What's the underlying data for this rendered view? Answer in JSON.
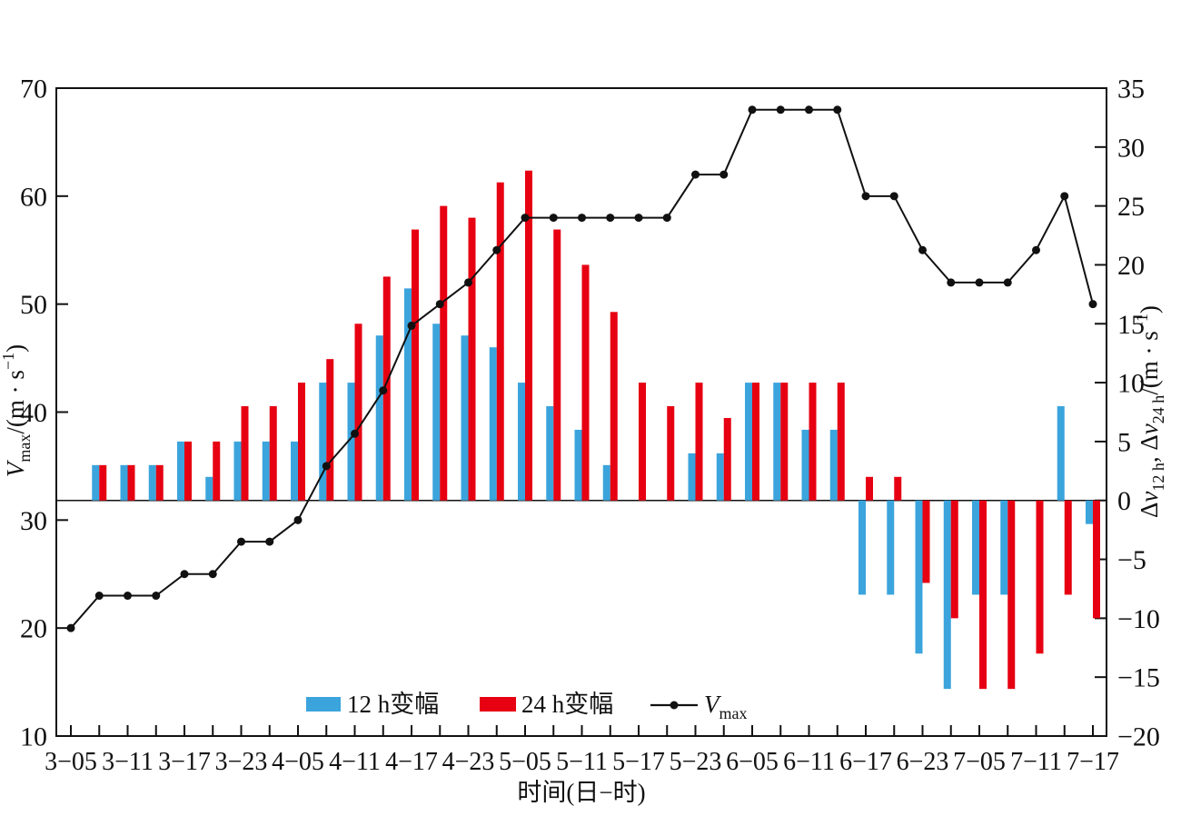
{
  "chart_data": {
    "type": "combo",
    "title": "",
    "xlabel": "时间(日−时)",
    "x_tick_labels": [
      "3−05",
      "3−11",
      "3−17",
      "3−23",
      "4−05",
      "4−11",
      "4−17",
      "4−23",
      "5−05",
      "5−11",
      "5−17",
      "5−23",
      "6−05",
      "6−11",
      "6−17",
      "6−23",
      "7−05",
      "7−11",
      "7−17"
    ],
    "x_points_per_label": 2,
    "n_points": 37,
    "left_axis": {
      "min": 10,
      "max": 70,
      "ticks": [
        10,
        20,
        30,
        40,
        50,
        60,
        70
      ],
      "label_parts": [
        {
          "text": "V",
          "style": "italic"
        },
        {
          "text": "max",
          "style": "sub"
        },
        {
          "text": "/(m · s",
          "style": ""
        },
        {
          "text": "−1",
          "style": "sup"
        },
        {
          "text": ")",
          "style": ""
        }
      ]
    },
    "right_axis": {
      "min": -20,
      "max": 35,
      "ticks": [
        -20,
        -15,
        -10,
        -5,
        0,
        5,
        10,
        15,
        20,
        25,
        30,
        35
      ],
      "zero_line": 0,
      "label_parts": [
        {
          "text": "Δ",
          "style": ""
        },
        {
          "text": "v",
          "style": "italic"
        },
        {
          "text": "12 h",
          "style": "sub"
        },
        {
          "text": ", Δ",
          "style": ""
        },
        {
          "text": "v",
          "style": "italic"
        },
        {
          "text": "24 h",
          "style": "sub"
        },
        {
          "text": "/(m · s",
          "style": ""
        },
        {
          "text": "−1",
          "style": "sup"
        },
        {
          "text": ")",
          "style": ""
        }
      ]
    },
    "series": [
      {
        "name": "12 h变幅",
        "type": "bar",
        "axis": "right",
        "color": "#3ba4dc",
        "values": [
          null,
          3,
          3,
          3,
          5,
          2,
          5,
          5,
          5,
          10,
          10,
          14,
          18,
          15,
          14,
          13,
          10,
          8,
          6,
          3,
          0,
          0,
          4,
          4,
          10,
          10,
          6,
          6,
          -8,
          -8,
          -13,
          -16,
          -8,
          -8,
          0,
          8,
          -2
        ]
      },
      {
        "name": "24 h变幅",
        "type": "bar",
        "axis": "right",
        "color": "#e60012",
        "values": [
          null,
          3,
          3,
          3,
          5,
          5,
          8,
          8,
          10,
          12,
          15,
          19,
          23,
          25,
          24,
          27,
          28,
          23,
          20,
          16,
          10,
          8,
          10,
          7,
          10,
          10,
          10,
          10,
          2,
          2,
          -7,
          -10,
          -16,
          -16,
          -13,
          -8,
          -10
        ]
      },
      {
        "name": "Vmax",
        "type": "line",
        "axis": "left",
        "color": "#111111",
        "values": [
          20,
          23,
          23,
          23,
          25,
          25,
          28,
          28,
          30,
          35,
          38,
          42,
          48,
          50,
          52,
          55,
          58,
          58,
          58,
          58,
          58,
          58,
          62,
          62,
          68,
          68,
          68,
          68,
          60,
          60,
          55,
          52,
          52,
          52,
          55,
          60,
          50
        ]
      }
    ],
    "legend": {
      "items": [
        {
          "label": "12 h变幅",
          "swatch": "bar",
          "color": "#3ba4dc"
        },
        {
          "label": "24 h变幅",
          "swatch": "bar",
          "color": "#e60012"
        },
        {
          "label_var": "V",
          "label_sub": "max",
          "swatch": "line-dot",
          "color": "#111111"
        }
      ]
    }
  }
}
